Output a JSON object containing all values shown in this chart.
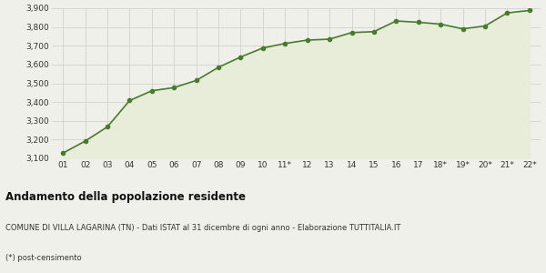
{
  "x_labels": [
    "01",
    "02",
    "03",
    "04",
    "05",
    "06",
    "07",
    "08",
    "09",
    "10",
    "11*",
    "12",
    "13",
    "14",
    "15",
    "16",
    "17",
    "18*",
    "19*",
    "20*",
    "21*",
    "22*"
  ],
  "y_values": [
    3128,
    3192,
    3268,
    3408,
    3460,
    3477,
    3515,
    3585,
    3640,
    3688,
    3712,
    3730,
    3735,
    3770,
    3775,
    3832,
    3825,
    3815,
    3790,
    3805,
    3875,
    3888
  ],
  "line_color": "#4a7a2e",
  "fill_color": "#e8edda",
  "marker_color": "#4a7a2e",
  "background_color": "#f0f0eb",
  "grid_color": "#cccccc",
  "ylim": [
    3100,
    3900
  ],
  "yticks": [
    3100,
    3200,
    3300,
    3400,
    3500,
    3600,
    3700,
    3800,
    3900
  ],
  "title1": "Andamento della popolazione residente",
  "title2": "COMUNE DI VILLA LAGARINA (TN) - Dati ISTAT al 31 dicembre di ogni anno - Elaborazione TUTTITALIA.IT",
  "title3": "(*) post-censimento"
}
